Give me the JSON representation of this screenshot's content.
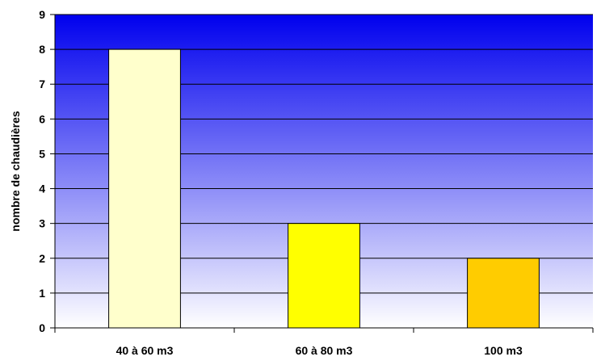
{
  "chart_data": {
    "type": "bar",
    "categories": [
      "40 à 60 m3",
      "60 à 80 m3",
      "100 m3"
    ],
    "values": [
      8,
      3,
      2
    ],
    "bar_colors": [
      "#FFFFCC",
      "#FFFF00",
      "#FFCC00"
    ],
    "title": "",
    "xlabel": "",
    "ylabel": "nombre de chaudières",
    "ylim": [
      0,
      9
    ],
    "yticks": [
      "0",
      "1",
      "2",
      "3",
      "4",
      "5",
      "6",
      "7",
      "8",
      "9"
    ],
    "grid": true,
    "legend": "none",
    "background_gradient": [
      "#0000EE",
      "#FFFFFF"
    ]
  }
}
